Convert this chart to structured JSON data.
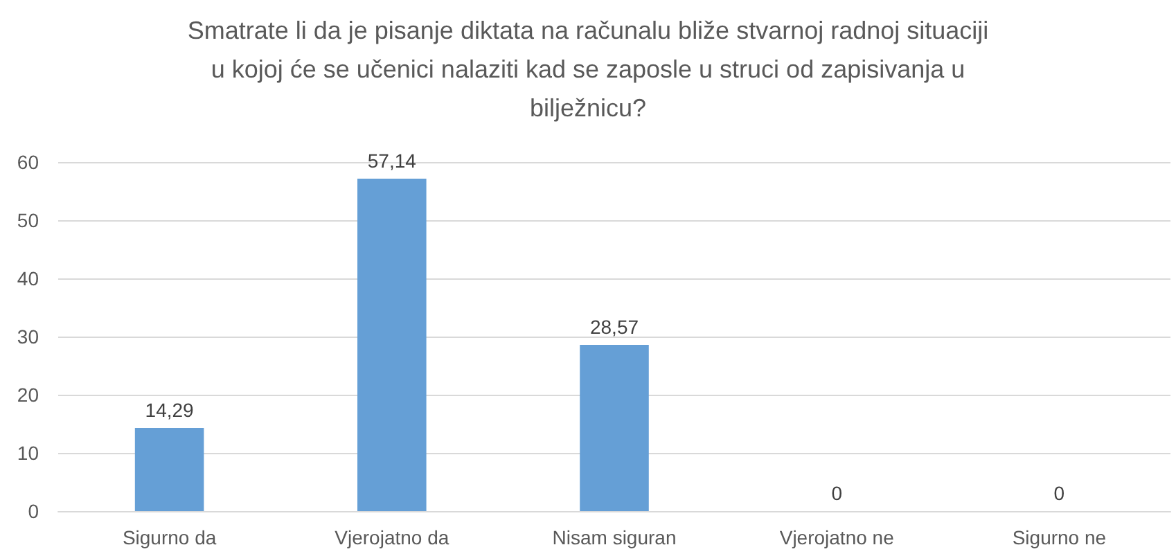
{
  "chart_data": {
    "type": "bar",
    "title": "Smatrate li da je pisanje diktata na računalu bliže stvarnoj radnoj situaciji u kojoj će se učenici nalaziti kad se zaposle u struci od zapisivanja u bilježnicu?",
    "categories": [
      "Sigurno da",
      "Vjerojatno da",
      "Nisam siguran",
      "Vjerojatno ne",
      "Sigurno ne"
    ],
    "values": [
      14.29,
      57.14,
      28.57,
      0,
      0
    ],
    "value_labels": [
      "14,29",
      "57,14",
      "28,57",
      "0",
      "0"
    ],
    "color": "#659fd6",
    "ylim": [
      0,
      60
    ],
    "yticks": [
      0,
      10,
      20,
      30,
      40,
      50,
      60
    ],
    "grid": "y"
  }
}
